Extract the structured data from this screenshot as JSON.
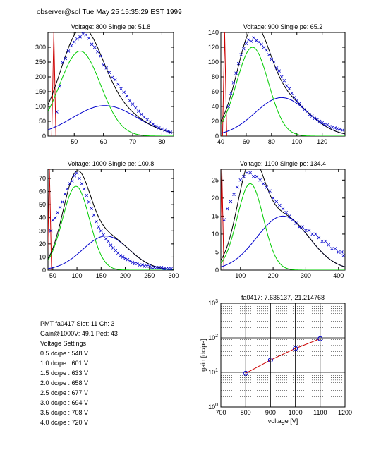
{
  "header": "observer@sol  Tue May 25 15:35:29 EST 1999",
  "info": {
    "pmt_line": "PMT fa0417 Slot: 11 Ch: 3",
    "gain_line": "Gain@1000V: 49.1 Ped: 43",
    "settings_title": "Voltage Settings",
    "settings": [
      "0.5 dc/pe : 548 V",
      "1.0 dc/pe : 601 V",
      "1.5 dc/pe : 633 V",
      "2.0 dc/pe : 658 V",
      "2.5 dc/pe : 677 V",
      "3.0 dc/pe : 694 V",
      "3.5 dc/pe : 708 V",
      "4.0 dc/pe : 720 V"
    ]
  },
  "colors": {
    "data": "#0000cc",
    "fit": "#000000",
    "signal": "#00cc00",
    "background": "#0000cc",
    "pedestal": "#cc0000",
    "gainline": "#cc0000"
  },
  "chart_data": [
    {
      "type": "scatter",
      "title": "Voltage: 800 Single pe: 51.8",
      "xlim": [
        41,
        84
      ],
      "ylim": [
        0,
        350
      ],
      "xticks": [
        50,
        60,
        70,
        80
      ],
      "yticks": [
        0,
        50,
        100,
        150,
        200,
        250,
        300
      ],
      "ped_pos": 43,
      "ped_amp": 350,
      "sig_amp": 287,
      "sig_mu": 52,
      "sig_sigma": 7,
      "bg_amp": 103,
      "bg_mu": 60.5,
      "bg_sigma": 11,
      "points": [
        [
          44,
          82
        ],
        [
          45,
          168
        ],
        [
          46,
          248
        ],
        [
          47,
          262
        ],
        [
          48,
          287
        ],
        [
          49,
          305
        ],
        [
          50,
          318
        ],
        [
          51,
          328
        ],
        [
          52,
          335
        ],
        [
          53,
          345
        ],
        [
          54,
          342
        ],
        [
          55,
          330
        ],
        [
          56,
          310
        ],
        [
          57,
          300
        ],
        [
          58,
          285
        ],
        [
          59,
          270
        ],
        [
          60,
          240
        ],
        [
          61,
          230
        ],
        [
          62,
          215
        ],
        [
          63,
          198
        ],
        [
          64,
          190
        ],
        [
          65,
          175
        ],
        [
          66,
          160
        ],
        [
          67,
          148
        ],
        [
          68,
          135
        ],
        [
          69,
          120
        ],
        [
          70,
          108
        ],
        [
          71,
          95
        ],
        [
          72,
          84
        ],
        [
          73,
          74
        ],
        [
          74,
          64
        ],
        [
          75,
          55
        ],
        [
          76,
          48
        ],
        [
          77,
          40
        ],
        [
          78,
          34
        ],
        [
          79,
          28
        ],
        [
          80,
          24
        ],
        [
          81,
          20
        ],
        [
          82,
          16
        ],
        [
          83,
          13
        ]
      ]
    },
    {
      "type": "scatter",
      "title": "Voltage: 900 Single pe: 65.2",
      "xlim": [
        40,
        138
      ],
      "ylim": [
        0,
        140
      ],
      "xticks": [
        40,
        60,
        80,
        100,
        120
      ],
      "yticks": [
        0,
        20,
        40,
        60,
        80,
        100,
        120,
        140
      ],
      "ped_pos": 43,
      "ped_amp": 140,
      "sig_amp": 120,
      "sig_mu": 65,
      "sig_sigma": 12.5,
      "bg_amp": 52,
      "bg_mu": 88,
      "bg_sigma": 21,
      "points": [
        [
          46,
          40
        ],
        [
          48,
          58
        ],
        [
          50,
          72
        ],
        [
          52,
          85
        ],
        [
          54,
          98
        ],
        [
          56,
          110
        ],
        [
          58,
          118
        ],
        [
          60,
          125
        ],
        [
          62,
          130
        ],
        [
          64,
          128
        ],
        [
          66,
          133
        ],
        [
          68,
          129
        ],
        [
          70,
          127
        ],
        [
          72,
          124
        ],
        [
          74,
          120
        ],
        [
          76,
          116
        ],
        [
          78,
          110
        ],
        [
          80,
          104
        ],
        [
          82,
          100
        ],
        [
          84,
          92
        ],
        [
          86,
          88
        ],
        [
          88,
          80
        ],
        [
          90,
          75
        ],
        [
          92,
          68
        ],
        [
          94,
          64
        ],
        [
          96,
          58
        ],
        [
          98,
          52
        ],
        [
          100,
          48
        ],
        [
          102,
          44
        ],
        [
          104,
          40
        ],
        [
          106,
          36
        ],
        [
          108,
          33
        ],
        [
          110,
          29
        ],
        [
          112,
          27
        ],
        [
          114,
          24
        ],
        [
          116,
          22
        ],
        [
          118,
          20
        ],
        [
          120,
          18
        ],
        [
          122,
          16
        ],
        [
          124,
          15
        ],
        [
          126,
          13
        ],
        [
          128,
          12
        ],
        [
          130,
          11
        ],
        [
          132,
          10
        ],
        [
          134,
          9
        ],
        [
          136,
          8
        ]
      ]
    },
    {
      "type": "scatter",
      "title": "Voltage: 1000 Single pe: 100.8",
      "xlim": [
        40,
        300
      ],
      "ylim": [
        0,
        77
      ],
      "xticks": [
        50,
        100,
        150,
        200,
        250,
        300
      ],
      "yticks": [
        0,
        10,
        20,
        30,
        40,
        50,
        60,
        70
      ],
      "ped_pos": 43,
      "ped_amp": 77,
      "sig_amp": 64,
      "sig_mu": 98,
      "sig_sigma": 28,
      "bg_amp": 26,
      "bg_mu": 160,
      "bg_sigma": 48,
      "points": [
        [
          46,
          30
        ],
        [
          50,
          38
        ],
        [
          55,
          40
        ],
        [
          60,
          44
        ],
        [
          65,
          48
        ],
        [
          70,
          52
        ],
        [
          75,
          58
        ],
        [
          80,
          62
        ],
        [
          85,
          66
        ],
        [
          90,
          68
        ],
        [
          95,
          72
        ],
        [
          100,
          74
        ],
        [
          105,
          70
        ],
        [
          110,
          66
        ],
        [
          115,
          62
        ],
        [
          120,
          57
        ],
        [
          125,
          52
        ],
        [
          130,
          47
        ],
        [
          135,
          42
        ],
        [
          140,
          37
        ],
        [
          145,
          33
        ],
        [
          150,
          30
        ],
        [
          155,
          27
        ],
        [
          160,
          24
        ],
        [
          165,
          22
        ],
        [
          170,
          19
        ],
        [
          175,
          17
        ],
        [
          180,
          15
        ],
        [
          185,
          13
        ],
        [
          190,
          11
        ],
        [
          195,
          10
        ],
        [
          200,
          9
        ],
        [
          205,
          8
        ],
        [
          210,
          7
        ],
        [
          215,
          6
        ],
        [
          220,
          5
        ],
        [
          225,
          5
        ],
        [
          230,
          4
        ],
        [
          235,
          4
        ],
        [
          240,
          3
        ],
        [
          245,
          3
        ],
        [
          250,
          3
        ],
        [
          255,
          2
        ],
        [
          260,
          2
        ],
        [
          265,
          2
        ],
        [
          270,
          2
        ],
        [
          275,
          2
        ],
        [
          280,
          1
        ],
        [
          285,
          1
        ],
        [
          290,
          1
        ],
        [
          295,
          1
        ]
      ]
    },
    {
      "type": "scatter",
      "title": "Voltage: 1100 Single pe: 134.4",
      "xlim": [
        40,
        420
      ],
      "ylim": [
        0,
        28
      ],
      "xticks": [
        100,
        200,
        300,
        400
      ],
      "yticks": [
        0,
        5,
        10,
        15,
        20,
        25
      ],
      "ped_pos": 43,
      "ped_amp": 28,
      "sig_amp": 24,
      "sig_mu": 130,
      "sig_sigma": 40,
      "bg_amp": 15,
      "bg_mu": 230,
      "bg_sigma": 80,
      "points": [
        [
          50,
          14
        ],
        [
          60,
          17
        ],
        [
          70,
          19
        ],
        [
          80,
          21
        ],
        [
          90,
          23
        ],
        [
          100,
          25
        ],
        [
          110,
          26
        ],
        [
          120,
          27
        ],
        [
          130,
          27
        ],
        [
          140,
          26
        ],
        [
          150,
          26
        ],
        [
          160,
          25
        ],
        [
          170,
          24
        ],
        [
          180,
          23
        ],
        [
          190,
          22
        ],
        [
          200,
          20
        ],
        [
          210,
          19
        ],
        [
          220,
          18
        ],
        [
          230,
          17
        ],
        [
          240,
          16
        ],
        [
          250,
          15
        ],
        [
          260,
          14
        ],
        [
          270,
          13
        ],
        [
          280,
          12
        ],
        [
          290,
          12
        ],
        [
          300,
          11
        ],
        [
          310,
          11
        ],
        [
          320,
          10
        ],
        [
          330,
          10
        ],
        [
          340,
          9
        ],
        [
          350,
          8
        ],
        [
          360,
          8
        ],
        [
          370,
          7
        ],
        [
          380,
          6
        ],
        [
          390,
          6
        ],
        [
          400,
          5
        ],
        [
          410,
          5
        ],
        [
          415,
          4
        ]
      ]
    },
    {
      "type": "line",
      "title": "fa0417: 7.635137,-21.214768",
      "xlabel": "voltage [V]",
      "ylabel": "gain [dc/pe]",
      "xlim": [
        700,
        1200
      ],
      "ylim": [
        1,
        1000
      ],
      "yscale": "log",
      "xticks": [
        700,
        800,
        900,
        1000,
        1100,
        1200
      ],
      "yticks": [
        "10^0",
        "10^1",
        "10^2",
        "10^3"
      ],
      "grid": true,
      "x": [
        800,
        900,
        1000,
        1100
      ],
      "y": [
        9.4,
        22.6,
        49.1,
        94.2
      ]
    }
  ]
}
